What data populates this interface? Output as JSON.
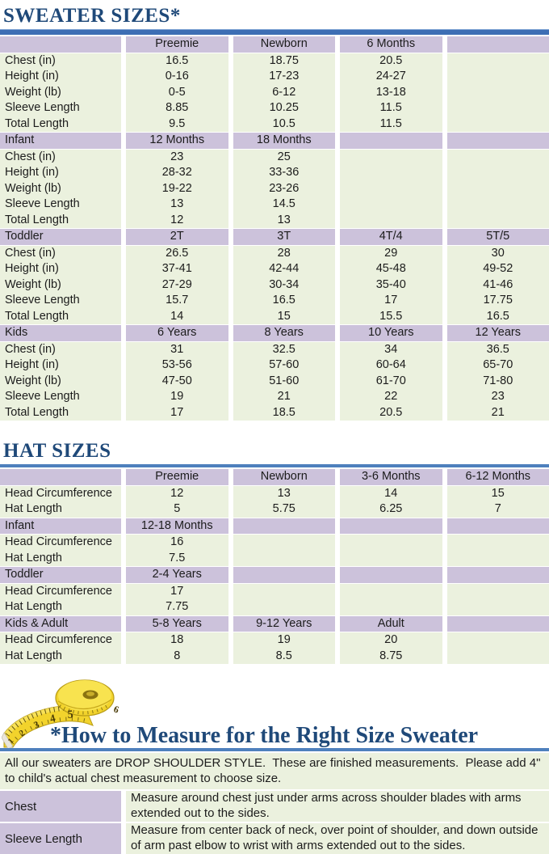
{
  "colors": {
    "title_blue": "#1F4979",
    "rule_heavy_blue": "#3D6EB4",
    "rule_light_blue": "#4E80BD",
    "header_purple": "#CCC2DB",
    "row_green": "#EBF1DE",
    "tape_yellow": "#F2D32C"
  },
  "sweater_table": {
    "title": "SWEATER SIZES*",
    "sections": [
      {
        "header": [
          "",
          "Preemie",
          "Newborn",
          "6 Months",
          ""
        ],
        "rows": [
          [
            "Chest (in)",
            "16.5",
            "18.75",
            "20.5",
            ""
          ],
          [
            "Height (in)",
            "0-16",
            "17-23",
            "24-27",
            ""
          ],
          [
            "Weight (lb)",
            "0-5",
            "6-12",
            "13-18",
            ""
          ],
          [
            "Sleeve Length",
            "8.85",
            "10.25",
            "11.5",
            ""
          ],
          [
            "Total Length",
            "9.5",
            "10.5",
            "11.5",
            ""
          ]
        ]
      },
      {
        "header": [
          "Infant",
          "12 Months",
          "18 Months",
          "",
          ""
        ],
        "rows": [
          [
            "Chest (in)",
            "23",
            "25",
            "",
            ""
          ],
          [
            "Height (in)",
            "28-32",
            "33-36",
            "",
            ""
          ],
          [
            "Weight (lb)",
            "19-22",
            "23-26",
            "",
            ""
          ],
          [
            "Sleeve Length",
            "13",
            "14.5",
            "",
            ""
          ],
          [
            "Total Length",
            "12",
            "13",
            "",
            ""
          ]
        ]
      },
      {
        "header": [
          "Toddler",
          "2T",
          "3T",
          "4T/4",
          "5T/5"
        ],
        "rows": [
          [
            "Chest (in)",
            "26.5",
            "28",
            "29",
            "30"
          ],
          [
            "Height (in)",
            "37-41",
            "42-44",
            "45-48",
            "49-52"
          ],
          [
            "Weight (lb)",
            "27-29",
            "30-34",
            "35-40",
            "41-46"
          ],
          [
            "Sleeve Length",
            "15.7",
            "16.5",
            "17",
            "17.75"
          ],
          [
            "Total Length",
            "14",
            "15",
            "15.5",
            "16.5"
          ]
        ]
      },
      {
        "header": [
          "Kids",
          "6 Years",
          "8 Years",
          "10 Years",
          "12 Years"
        ],
        "rows": [
          [
            "Chest (in)",
            "31",
            "32.5",
            "34",
            "36.5"
          ],
          [
            "Height (in)",
            "53-56",
            "57-60",
            "60-64",
            "65-70"
          ],
          [
            "Weight (lb)",
            "47-50",
            "51-60",
            "61-70",
            "71-80"
          ],
          [
            "Sleeve Length",
            "19",
            "21",
            "22",
            "23"
          ],
          [
            "Total Length",
            "17",
            "18.5",
            "20.5",
            "21"
          ]
        ]
      }
    ]
  },
  "hat_table": {
    "title": "HAT SIZES",
    "sections": [
      {
        "header": [
          "",
          "Preemie",
          "Newborn",
          "3-6 Months",
          "6-12 Months"
        ],
        "rows": [
          [
            "Head Circumference",
            "12",
            "13",
            "14",
            "15"
          ],
          [
            "Hat Length",
            "5",
            "5.75",
            "6.25",
            "7"
          ]
        ]
      },
      {
        "header": [
          "Infant",
          "12-18 Months",
          "",
          "",
          ""
        ],
        "rows": [
          [
            "Head Circumference",
            "16",
            "",
            "",
            ""
          ],
          [
            "Hat Length",
            "7.5",
            "",
            "",
            ""
          ]
        ]
      },
      {
        "header": [
          "Toddler",
          "2-4 Years",
          "",
          "",
          ""
        ],
        "rows": [
          [
            "Head Circumference",
            "17",
            "",
            "",
            ""
          ],
          [
            "Hat Length",
            "7.75",
            "",
            "",
            ""
          ]
        ]
      },
      {
        "header": [
          "Kids & Adult",
          "5-8 Years",
          "9-12 Years",
          "Adult",
          ""
        ],
        "rows": [
          [
            "Head Circumference",
            "18",
            "19",
            "20",
            ""
          ],
          [
            "Hat Length",
            "8",
            "8.5",
            "8.75",
            ""
          ]
        ]
      }
    ]
  },
  "measure": {
    "title": "*How to Measure for the Right Size Sweater",
    "intro": "All our sweaters are DROP SHOULDER STYLE.  These are finished measurements.  Please add 4\" to child's actual chest measurement to choose size.",
    "rows": [
      {
        "label": "Chest",
        "text": "Measure around chest just under arms across shoulder blades with arms extended out to the sides."
      },
      {
        "label": "Sleeve Length",
        "text": "Measure from center back of neck, over point of shoulder, and down outside of arm past elbow to wrist with arms extended out to the sides."
      }
    ]
  },
  "tape": {
    "numbers": [
      "1",
      "2",
      "3",
      "4",
      "5",
      "6"
    ]
  }
}
